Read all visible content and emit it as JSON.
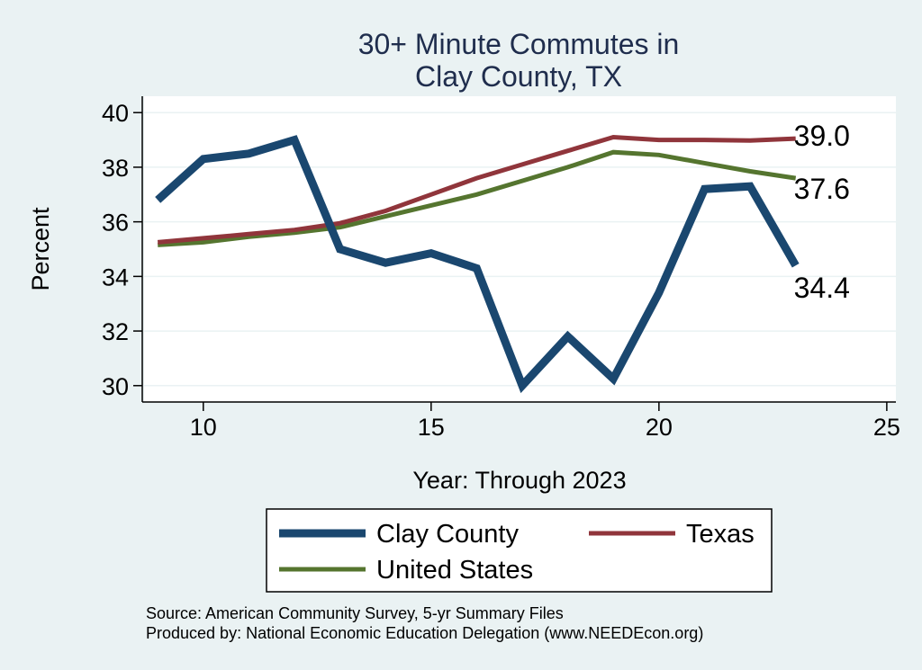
{
  "chart_data": {
    "type": "line",
    "title": [
      "30+ Minute Commutes in",
      "Clay County, TX"
    ],
    "xlabel": "Year: Through 2023",
    "ylabel": "Percent",
    "xlim": [
      8.7,
      25.2
    ],
    "ylim": [
      29.4,
      40.6
    ],
    "xticks": [
      10,
      15,
      20,
      25
    ],
    "yticks": [
      30,
      32,
      34,
      36,
      38,
      40
    ],
    "grid": true,
    "legend_position": "bottom",
    "series": [
      {
        "name": "Clay County",
        "color": "#1a476f",
        "width": 9,
        "x": [
          9,
          10,
          11,
          12,
          13,
          14,
          15,
          16,
          17,
          18,
          19,
          20,
          21,
          22,
          23
        ],
        "values": [
          36.8,
          38.3,
          38.5,
          39.0,
          35.0,
          34.5,
          34.85,
          34.3,
          30.0,
          31.8,
          30.25,
          33.4,
          37.2,
          37.3,
          34.4
        ],
        "end_label": "34.4"
      },
      {
        "name": "Texas",
        "color": "#90353b",
        "width": 5,
        "x": [
          9,
          10,
          11,
          12,
          13,
          14,
          15,
          16,
          17,
          18,
          19,
          20,
          21,
          22,
          23
        ],
        "values": [
          35.25,
          35.4,
          35.55,
          35.7,
          35.95,
          36.4,
          37.0,
          37.6,
          38.1,
          38.6,
          39.1,
          39.0,
          39.0,
          38.98,
          39.05
        ],
        "end_label": "39.0"
      },
      {
        "name": "United States",
        "color": "#55752f",
        "width": 5,
        "x": [
          9,
          10,
          11,
          12,
          13,
          14,
          15,
          16,
          17,
          18,
          19,
          20,
          21,
          22,
          23
        ],
        "values": [
          35.15,
          35.25,
          35.45,
          35.6,
          35.8,
          36.2,
          36.6,
          37.0,
          37.5,
          38.0,
          38.55,
          38.45,
          38.15,
          37.85,
          37.6
        ],
        "end_label": "37.6"
      }
    ],
    "legend": [
      "Clay County",
      "Texas",
      "United States"
    ],
    "source_lines": [
      "Source: American Community Survey, 5-yr Summary Files",
      "Produced by: National Economic Education Delegation (www.NEEDEcon.org)"
    ]
  }
}
